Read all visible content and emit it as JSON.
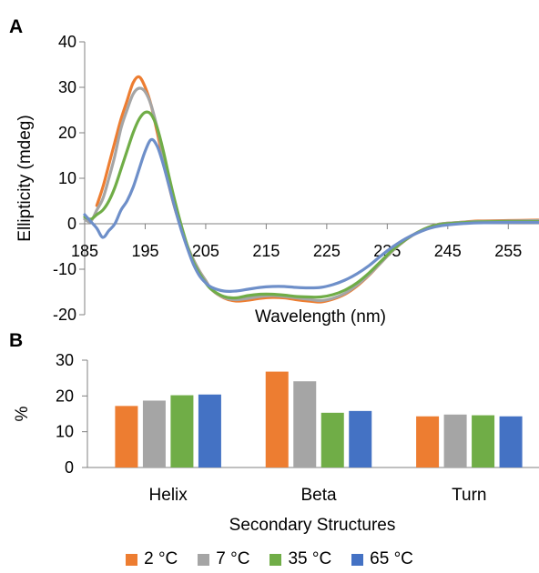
{
  "colors": {
    "2C": "#ED7D31",
    "7C": "#A5A5A5",
    "35C": "#70AD47",
    "65C": "#6E8FC9",
    "65C_bar": "#4472C4",
    "axis": "#808080"
  },
  "panels": {
    "a_label": "A",
    "b_label": "B"
  },
  "chart_data": [
    {
      "type": "line",
      "panel": "A",
      "xlabel": "Wavelength (nm)",
      "ylabel": "Ellipticity (mdeg)",
      "xlim": [
        185,
        260
      ],
      "ylim": [
        -20,
        40
      ],
      "x_ticks": [
        "185",
        "195",
        "205",
        "215",
        "225",
        "235",
        "245",
        "255"
      ],
      "y_ticks": [
        "40",
        "30",
        "20",
        "10",
        "0",
        "-10",
        "-20"
      ],
      "grid": false,
      "series": [
        {
          "name": "2 °C",
          "color_key": "2C",
          "points": [
            [
              187,
              4
            ],
            [
              188,
              8
            ],
            [
              189,
              13
            ],
            [
              190,
              18
            ],
            [
              191,
              23
            ],
            [
              192,
              27
            ],
            [
              193,
              31
            ],
            [
              194,
              32.3
            ],
            [
              195,
              30
            ],
            [
              196,
              26
            ],
            [
              197,
              20
            ],
            [
              198,
              14
            ],
            [
              199,
              8
            ],
            [
              200,
              3
            ],
            [
              201,
              -1
            ],
            [
              202,
              -5
            ],
            [
              203,
              -8
            ],
            [
              204,
              -10.5
            ],
            [
              205,
              -12.5
            ],
            [
              206,
              -14.5
            ],
            [
              208,
              -16.3
            ],
            [
              210,
              -17
            ],
            [
              212,
              -16.8
            ],
            [
              214,
              -16.4
            ],
            [
              216,
              -16.2
            ],
            [
              218,
              -16.3
            ],
            [
              220,
              -16.7
            ],
            [
              222,
              -17
            ],
            [
              224,
              -17.2
            ],
            [
              226,
              -16.6
            ],
            [
              228,
              -15.5
            ],
            [
              230,
              -13.7
            ],
            [
              232,
              -11.3
            ],
            [
              234,
              -8.5
            ],
            [
              236,
              -5.8
            ],
            [
              238,
              -3.6
            ],
            [
              240,
              -1.9
            ],
            [
              242,
              -0.7
            ],
            [
              244,
              0
            ],
            [
              247,
              0.3
            ],
            [
              250,
              0.6
            ],
            [
              255,
              0.7
            ],
            [
              260,
              0.8
            ]
          ]
        },
        {
          "name": "7 °C",
          "color_key": "7C",
          "points": [
            [
              185,
              1
            ],
            [
              186,
              0.5
            ],
            [
              187,
              3
            ],
            [
              188,
              5.5
            ],
            [
              189,
              10
            ],
            [
              190,
              15
            ],
            [
              191,
              21
            ],
            [
              192,
              25
            ],
            [
              193,
              28.5
            ],
            [
              194,
              29.8
            ],
            [
              195,
              29
            ],
            [
              196,
              26
            ],
            [
              197,
              21
            ],
            [
              198,
              15
            ],
            [
              199,
              9
            ],
            [
              200,
              3.5
            ],
            [
              201,
              -1
            ],
            [
              202,
              -5
            ],
            [
              203,
              -8
            ],
            [
              204,
              -10.5
            ],
            [
              205,
              -12.5
            ],
            [
              206,
              -14.5
            ],
            [
              208,
              -16.2
            ],
            [
              210,
              -16.7
            ],
            [
              212,
              -16.4
            ],
            [
              214,
              -16
            ],
            [
              216,
              -15.8
            ],
            [
              218,
              -16
            ],
            [
              220,
              -16.3
            ],
            [
              222,
              -16.6
            ],
            [
              224,
              -16.9
            ],
            [
              226,
              -16.4
            ],
            [
              228,
              -15.3
            ],
            [
              230,
              -13.5
            ],
            [
              232,
              -11.2
            ],
            [
              234,
              -8.5
            ],
            [
              236,
              -5.8
            ],
            [
              238,
              -3.6
            ],
            [
              240,
              -1.9
            ],
            [
              242,
              -0.7
            ],
            [
              244,
              0
            ],
            [
              247,
              0.3
            ],
            [
              250,
              0.5
            ],
            [
              255,
              0.6
            ],
            [
              260,
              0.7
            ]
          ]
        },
        {
          "name": "35 °C",
          "color_key": "35C",
          "points": [
            [
              185,
              1.5
            ],
            [
              186,
              1
            ],
            [
              187,
              2
            ],
            [
              188,
              3
            ],
            [
              189,
              5
            ],
            [
              190,
              8
            ],
            [
              191,
              12
            ],
            [
              192,
              16
            ],
            [
              193,
              20
            ],
            [
              194,
              23
            ],
            [
              195,
              24.5
            ],
            [
              196,
              24
            ],
            [
              197,
              21
            ],
            [
              198,
              16
            ],
            [
              199,
              10
            ],
            [
              200,
              4.5
            ],
            [
              201,
              -0.5
            ],
            [
              202,
              -5
            ],
            [
              203,
              -8.5
            ],
            [
              204,
              -11
            ],
            [
              205,
              -13
            ],
            [
              206,
              -14.5
            ],
            [
              208,
              -16
            ],
            [
              210,
              -16.3
            ],
            [
              212,
              -15.8
            ],
            [
              214,
              -15.5
            ],
            [
              216,
              -15.5
            ],
            [
              218,
              -15.7
            ],
            [
              220,
              -16
            ],
            [
              222,
              -16.1
            ],
            [
              224,
              -16.1
            ],
            [
              226,
              -15.6
            ],
            [
              228,
              -14.6
            ],
            [
              230,
              -13
            ],
            [
              232,
              -10.8
            ],
            [
              234,
              -8.2
            ],
            [
              236,
              -5.6
            ],
            [
              238,
              -3.5
            ],
            [
              240,
              -1.9
            ],
            [
              242,
              -0.7
            ],
            [
              244,
              -0.1
            ],
            [
              247,
              0.2
            ],
            [
              250,
              0.4
            ],
            [
              255,
              0.5
            ],
            [
              260,
              0.5
            ]
          ]
        },
        {
          "name": "65 °C",
          "color_key": "65C",
          "points": [
            [
              185,
              2
            ],
            [
              186,
              0.5
            ],
            [
              187,
              -1
            ],
            [
              188,
              -3
            ],
            [
              189,
              -1.5
            ],
            [
              190,
              0
            ],
            [
              191,
              3
            ],
            [
              192,
              5
            ],
            [
              193,
              8
            ],
            [
              194,
              12
            ],
            [
              195,
              16
            ],
            [
              196,
              18.5
            ],
            [
              197,
              17
            ],
            [
              198,
              13
            ],
            [
              199,
              8
            ],
            [
              200,
              3
            ],
            [
              201,
              -1.5
            ],
            [
              202,
              -5.5
            ],
            [
              203,
              -9
            ],
            [
              204,
              -11.5
            ],
            [
              205,
              -13
            ],
            [
              206,
              -14
            ],
            [
              208,
              -14.8
            ],
            [
              210,
              -14.8
            ],
            [
              212,
              -14.4
            ],
            [
              214,
              -14
            ],
            [
              216,
              -13.8
            ],
            [
              218,
              -13.8
            ],
            [
              220,
              -14
            ],
            [
              222,
              -14.1
            ],
            [
              224,
              -14
            ],
            [
              226,
              -13.4
            ],
            [
              228,
              -12.4
            ],
            [
              230,
              -11
            ],
            [
              232,
              -9.2
            ],
            [
              234,
              -7
            ],
            [
              236,
              -5
            ],
            [
              238,
              -3.3
            ],
            [
              240,
              -2
            ],
            [
              242,
              -1
            ],
            [
              244,
              -0.4
            ],
            [
              247,
              0
            ],
            [
              250,
              0.2
            ],
            [
              255,
              0.3
            ],
            [
              260,
              0.3
            ]
          ]
        }
      ]
    },
    {
      "type": "bar",
      "panel": "B",
      "xlabel": "Secondary Structures",
      "ylabel": "%",
      "ylim": [
        0,
        30
      ],
      "y_ticks": [
        "30",
        "20",
        "10",
        "0"
      ],
      "categories": [
        "Helix",
        "Beta",
        "Turn"
      ],
      "grid": false,
      "legend_placement": "bottom",
      "series": [
        {
          "name": "2 °C",
          "color_key": "2C",
          "values": [
            17.2,
            26.8,
            14.3
          ]
        },
        {
          "name": "7 °C",
          "color_key": "7C",
          "values": [
            18.7,
            24.1,
            14.8
          ]
        },
        {
          "name": "35 °C",
          "color_key": "35C",
          "values": [
            20.2,
            15.3,
            14.6
          ]
        },
        {
          "name": "65 °C",
          "color_key": "65C_bar",
          "values": [
            20.4,
            15.8,
            14.3
          ]
        }
      ]
    }
  ]
}
